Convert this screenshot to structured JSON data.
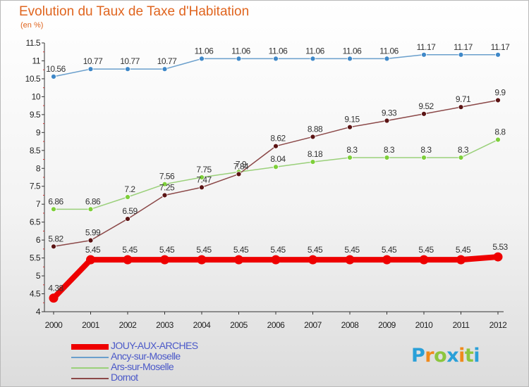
{
  "chart_data": {
    "type": "line",
    "title": "Evolution du Taux de Taxe d'Habitation",
    "subtitle": "(en %)",
    "ylim": [
      4,
      11.5
    ],
    "yticks": [
      "4",
      "4.5",
      "5",
      "5.5",
      "6",
      "6.5",
      "7",
      "7.5",
      "8",
      "8.5",
      "9",
      "9.5",
      "10",
      "10.5",
      "11",
      "11.5"
    ],
    "x": [
      "2000",
      "2001",
      "2002",
      "2003",
      "2004",
      "2005",
      "2006",
      "2007",
      "2008",
      "2009",
      "2010",
      "2011",
      "2012"
    ],
    "grid": false,
    "legend_position": "bottom-left",
    "series": [
      {
        "name": "JOUY-AUX-ARCHES",
        "color": "#ee0000",
        "values": [
          4.38,
          5.45,
          5.45,
          5.45,
          5.45,
          5.45,
          5.45,
          5.45,
          5.45,
          5.45,
          5.45,
          5.45,
          5.53
        ]
      },
      {
        "name": "Ancy-sur-Moselle",
        "color": "#6a9fcc",
        "values": [
          10.56,
          10.77,
          10.77,
          10.77,
          11.06,
          11.06,
          11.06,
          11.06,
          11.06,
          11.06,
          11.17,
          11.17,
          11.17
        ]
      },
      {
        "name": "Ars-sur-Moselle",
        "color": "#99cc66",
        "values": [
          6.86,
          6.86,
          7.2,
          7.56,
          7.75,
          7.9,
          8.04,
          8.18,
          8.3,
          8.3,
          8.3,
          8.3,
          8.8
        ]
      },
      {
        "name": "Dornot",
        "color": "#7a2a2a",
        "values": [
          5.82,
          5.99,
          6.59,
          7.25,
          7.47,
          7.84,
          8.62,
          8.88,
          9.15,
          9.33,
          9.52,
          9.71,
          9.9
        ]
      }
    ]
  },
  "logo": {
    "letters": [
      "P",
      "r",
      "o",
      "x",
      "i",
      "t",
      "i"
    ],
    "colors": [
      "#2aa0d8",
      "#f08a1c",
      "#8cc63e",
      "#2aa0d8",
      "#f08a1c",
      "#8cc63e",
      "#2aa0d8"
    ]
  }
}
